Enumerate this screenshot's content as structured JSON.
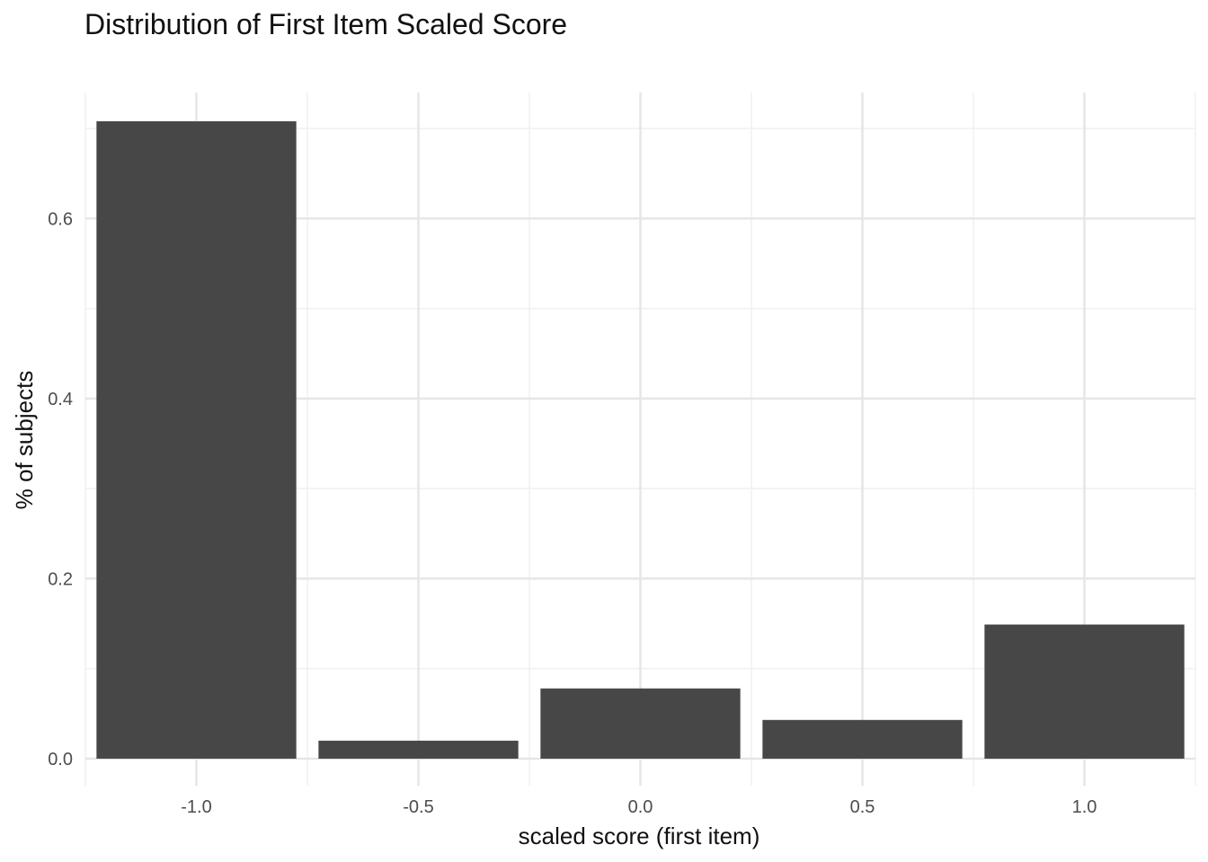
{
  "chart_data": {
    "type": "bar",
    "title": "Distribution of First Item Scaled Score",
    "xlabel": "scaled score (first item)",
    "ylabel": "% of subjects",
    "categories": [
      -1.0,
      -0.5,
      0.0,
      0.5,
      1.0
    ],
    "values": [
      0.708,
      0.02,
      0.078,
      0.043,
      0.149
    ],
    "x_ticks": [
      "-1.0",
      "-0.5",
      "0.0",
      "0.5",
      "1.0"
    ],
    "y_ticks": [
      "0.0",
      "0.2",
      "0.4",
      "0.6"
    ],
    "xlim": [
      -1.25,
      1.25
    ],
    "ylim": [
      -0.03,
      0.74
    ],
    "grid": true,
    "legend": "none",
    "colors": {
      "bar": "#474747",
      "grid_major": "#e6e6e6",
      "grid_minor": "#f0f0f0",
      "text": "#111111",
      "tick_text": "#4d4d4d",
      "background": "#ffffff"
    }
  }
}
